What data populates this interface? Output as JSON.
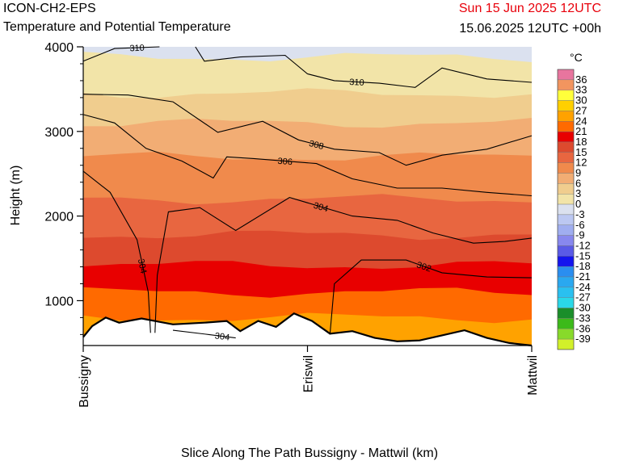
{
  "header": {
    "model": "ICON-CH2-EPS",
    "subtitle": "Temperature and Potential Temperature",
    "valid_time": "Sun 15 Jun 2025 12UTC",
    "run_info": "15.06.2025 12UTC +00h"
  },
  "colors": {
    "valid_time": "#e8000b",
    "terrain": "#ffffff",
    "contour": "#000000"
  },
  "chart_data": {
    "type": "heatmap",
    "title": "Temperature and Potential Temperature",
    "xlabel": "Slice Along The Path Bussigny - Mattwil (km)",
    "ylabel": "Height (m)",
    "x_ticks": [
      "Bussigny",
      "Eriswil",
      "Mattwil"
    ],
    "y_ticks": [
      1000,
      2000,
      3000,
      4000
    ],
    "ylim": [
      470,
      4000
    ],
    "x_positions": [
      0,
      0.5,
      1
    ],
    "legend": {
      "unit": "°C",
      "levels": [
        36,
        33,
        30,
        27,
        24,
        21,
        18,
        15,
        12,
        9,
        6,
        3,
        0,
        -3,
        -6,
        -9,
        -12,
        -15,
        -18,
        -21,
        -24,
        -27,
        -30,
        -33,
        -36,
        -39
      ],
      "colors": [
        "#e8759e",
        "#f2955f",
        "#ffff3b",
        "#ffd000",
        "#ffa200",
        "#ff6a00",
        "#e80000",
        "#dd4a2e",
        "#e86640",
        "#f08a4c",
        "#f2ad74",
        "#f0cd8e",
        "#f2e4a8",
        "#dbe1ef",
        "#bcc8f2",
        "#a0aef0",
        "#8888ee",
        "#5a5ae6",
        "#1414ee",
        "#2a8ef0",
        "#2aa8f0",
        "#2ac0f0",
        "#2ad8e8",
        "#1a8e2a",
        "#3cba1a",
        "#88da2a",
        "#d2f02a"
      ]
    },
    "temperature_bands": [
      {
        "t_min": -3,
        "t_max": 0,
        "top_m": 4000,
        "bottom_m": 3700
      },
      {
        "t_min": 0,
        "t_max": 3,
        "top_m": 3880,
        "bottom_m": 3400
      },
      {
        "t_min": 3,
        "t_max": 6,
        "top_m": 3450,
        "bottom_m": 3050
      },
      {
        "t_min": 6,
        "t_max": 9,
        "top_m": 3100,
        "bottom_m": 2600
      },
      {
        "t_min": 9,
        "t_max": 12,
        "top_m": 2700,
        "bottom_m": 2100
      },
      {
        "t_min": 12,
        "t_max": 15,
        "top_m": 2200,
        "bottom_m": 1750
      },
      {
        "t_min": 15,
        "t_max": 18,
        "top_m": 1780,
        "bottom_m": 1400
      },
      {
        "t_min": 18,
        "t_max": 21,
        "top_m": 1420,
        "bottom_m": 1080
      },
      {
        "t_min": 21,
        "t_max": 24,
        "top_m": 1100,
        "bottom_m": 780
      },
      {
        "t_min": 24,
        "t_max": 27,
        "top_m": 800,
        "bottom_m": 470
      }
    ],
    "terrain_profile_m": [
      {
        "x": 0.0,
        "h": 570
      },
      {
        "x": 0.02,
        "h": 700
      },
      {
        "x": 0.05,
        "h": 800
      },
      {
        "x": 0.08,
        "h": 740
      },
      {
        "x": 0.13,
        "h": 790
      },
      {
        "x": 0.2,
        "h": 720
      },
      {
        "x": 0.27,
        "h": 740
      },
      {
        "x": 0.32,
        "h": 760
      },
      {
        "x": 0.35,
        "h": 640
      },
      {
        "x": 0.39,
        "h": 760
      },
      {
        "x": 0.43,
        "h": 690
      },
      {
        "x": 0.47,
        "h": 850
      },
      {
        "x": 0.51,
        "h": 760
      },
      {
        "x": 0.55,
        "h": 610
      },
      {
        "x": 0.6,
        "h": 640
      },
      {
        "x": 0.65,
        "h": 560
      },
      {
        "x": 0.7,
        "h": 520
      },
      {
        "x": 0.75,
        "h": 530
      },
      {
        "x": 0.8,
        "h": 590
      },
      {
        "x": 0.85,
        "h": 650
      },
      {
        "x": 0.9,
        "h": 560
      },
      {
        "x": 0.95,
        "h": 500
      },
      {
        "x": 1.0,
        "h": 470
      }
    ],
    "theta_contours": [
      {
        "label": "302",
        "points": [
          [
            0.55,
            600
          ],
          [
            0.56,
            1200
          ],
          [
            0.62,
            1480
          ],
          [
            0.72,
            1480
          ],
          [
            0.8,
            1330
          ],
          [
            0.9,
            1280
          ],
          [
            1.0,
            1270
          ]
        ]
      },
      {
        "label": "304",
        "points": [
          [
            0.0,
            2530
          ],
          [
            0.06,
            2280
          ],
          [
            0.12,
            1720
          ],
          [
            0.145,
            1100
          ],
          [
            0.15,
            620
          ]
        ]
      },
      {
        "label": "304",
        "points": [
          [
            0.16,
            620
          ],
          [
            0.165,
            1300
          ],
          [
            0.19,
            2050
          ],
          [
            0.26,
            2100
          ],
          [
            0.34,
            1830
          ],
          [
            0.46,
            2220
          ],
          [
            0.6,
            2000
          ],
          [
            0.7,
            1950
          ],
          [
            0.78,
            1800
          ],
          [
            0.87,
            1680
          ],
          [
            0.94,
            1700
          ],
          [
            1.0,
            1740
          ]
        ]
      },
      {
        "label": "304",
        "points": [
          [
            0.2,
            650
          ],
          [
            0.28,
            600
          ],
          [
            0.34,
            560
          ]
        ]
      },
      {
        "label": "306",
        "points": [
          [
            0.0,
            3200
          ],
          [
            0.07,
            3100
          ],
          [
            0.14,
            2800
          ],
          [
            0.22,
            2650
          ],
          [
            0.29,
            2450
          ],
          [
            0.32,
            2700
          ],
          [
            0.38,
            2680
          ],
          [
            0.52,
            2620
          ],
          [
            0.6,
            2440
          ],
          [
            0.7,
            2330
          ],
          [
            0.8,
            2330
          ],
          [
            0.9,
            2280
          ],
          [
            1.0,
            2240
          ]
        ]
      },
      {
        "label": "308",
        "points": [
          [
            0.0,
            3440
          ],
          [
            0.1,
            3430
          ],
          [
            0.2,
            3350
          ],
          [
            0.3,
            2990
          ],
          [
            0.4,
            3120
          ],
          [
            0.48,
            2900
          ],
          [
            0.56,
            2790
          ],
          [
            0.66,
            2750
          ],
          [
            0.72,
            2600
          ],
          [
            0.8,
            2720
          ],
          [
            0.9,
            2790
          ],
          [
            1.0,
            2950
          ]
        ]
      },
      {
        "label": "310",
        "points": [
          [
            0.0,
            3830
          ],
          [
            0.07,
            3980
          ],
          [
            0.17,
            4000
          ]
        ]
      },
      {
        "label": "310",
        "points": [
          [
            0.25,
            4000
          ],
          [
            0.27,
            3830
          ],
          [
            0.35,
            3880
          ],
          [
            0.45,
            3900
          ],
          [
            0.5,
            3680
          ],
          [
            0.56,
            3600
          ],
          [
            0.66,
            3570
          ],
          [
            0.74,
            3520
          ],
          [
            0.8,
            3750
          ],
          [
            0.9,
            3620
          ],
          [
            1.0,
            3580
          ]
        ]
      }
    ],
    "grid": false,
    "legend_position": "right"
  }
}
